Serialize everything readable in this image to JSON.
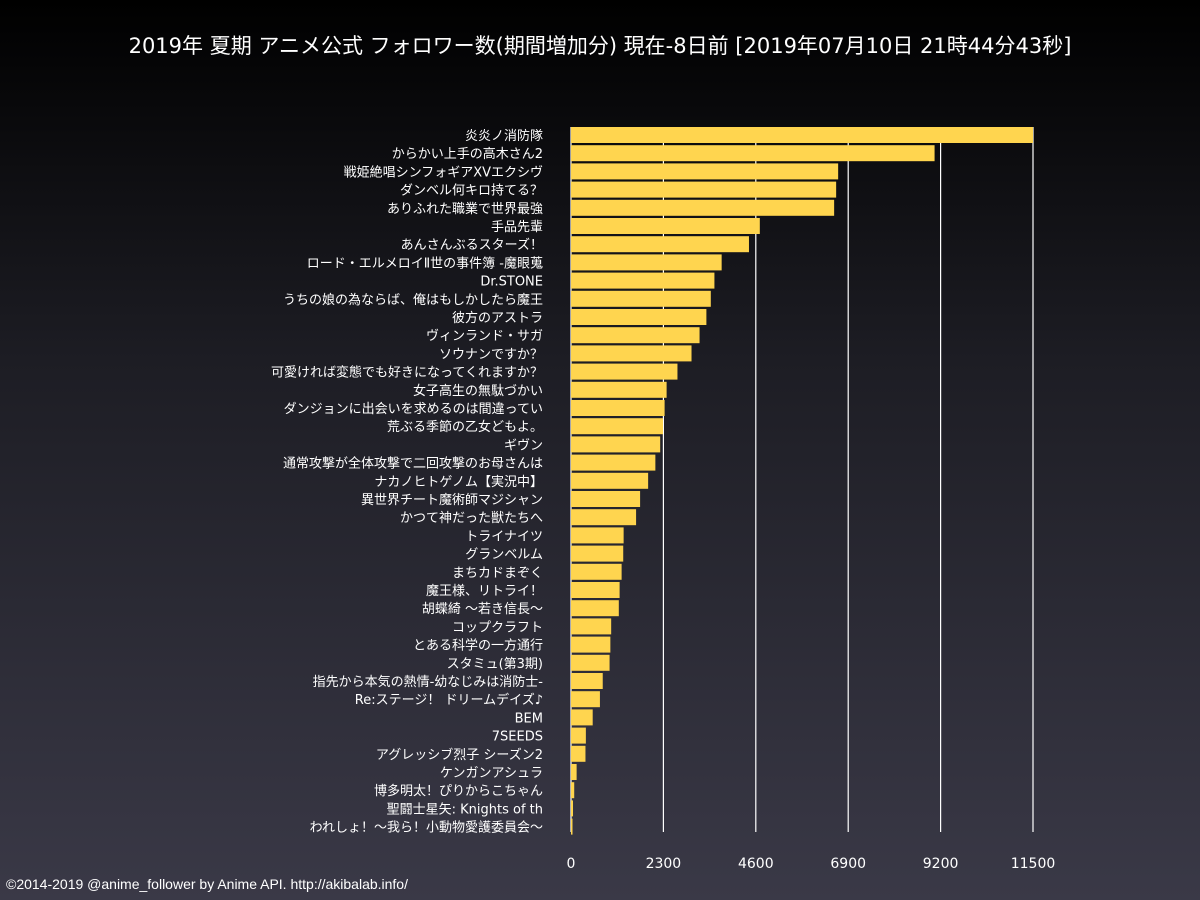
{
  "chart_data": {
    "type": "bar",
    "orientation": "horizontal",
    "title": "2019年 夏期 アニメ公式 フォロワー数(期間増加分) 現在-8日前 [2019年07月10日 21時44分43秒]",
    "xlabel": "",
    "ylabel": "",
    "xlim": [
      0,
      11500
    ],
    "xticks": [
      0,
      2300,
      4600,
      6900,
      9200,
      11500
    ],
    "grid": true,
    "bar_color": "#ffd54f",
    "categories": [
      "炎炎ノ消防隊",
      "からかい上手の高木さん2",
      "戦姫絶唱シンフォギアXVエクシヴ",
      "ダンベル何キロ持てる？",
      "ありふれた職業で世界最強",
      "手品先輩",
      "あんさんぶるスターズ！",
      "ロード・エルメロイⅡ世の事件簿 -魔眼蒐",
      "Dr.STONE",
      "うちの娘の為ならば、俺はもしかしたら魔王",
      "彼方のアストラ",
      "ヴィンランド・サガ",
      "ソウナンですか？",
      "可愛ければ変態でも好きになってくれますか？",
      "女子高生の無駄づかい",
      "ダンジョンに出会いを求めるのは間違ってい",
      "荒ぶる季節の乙女どもよ。",
      "ギヴン",
      "通常攻撃が全体攻撃で二回攻撃のお母さんは",
      "ナカノヒトゲノム【実況中】",
      "異世界チート魔術師マジシャン",
      "かつて神だった獣たちへ",
      "トライナイツ",
      "グランベルム",
      "まちカドまぞく",
      "魔王様、リトライ！",
      "胡蝶綺 ～若き信長～",
      "コップクラフト",
      "とある科学の一方通行",
      "スタミュ(第3期)",
      "指先から本気の熱情-幼なじみは消防士-",
      "Re:ステージ！ ドリームデイズ♪",
      "BEM",
      "7SEEDS",
      "アグレッシブ烈子 シーズン2",
      "ケンガンアシュラ",
      "博多明太！ぴりからこちゃん",
      "聖闘士星矢: Knights of th",
      "われしょ！～我ら！小動物愛護委員会～"
    ],
    "values": [
      11500,
      9050,
      6650,
      6600,
      6550,
      4700,
      4430,
      3750,
      3570,
      3480,
      3370,
      3200,
      3000,
      2650,
      2380,
      2330,
      2290,
      2220,
      2100,
      1920,
      1720,
      1620,
      1310,
      1300,
      1260,
      1210,
      1190,
      1000,
      980,
      960,
      790,
      720,
      540,
      370,
      360,
      140,
      80,
      50,
      20
    ]
  },
  "footer": {
    "credit": "©2014-2019 @anime_follower by Anime API. http://akibalab.info/"
  }
}
